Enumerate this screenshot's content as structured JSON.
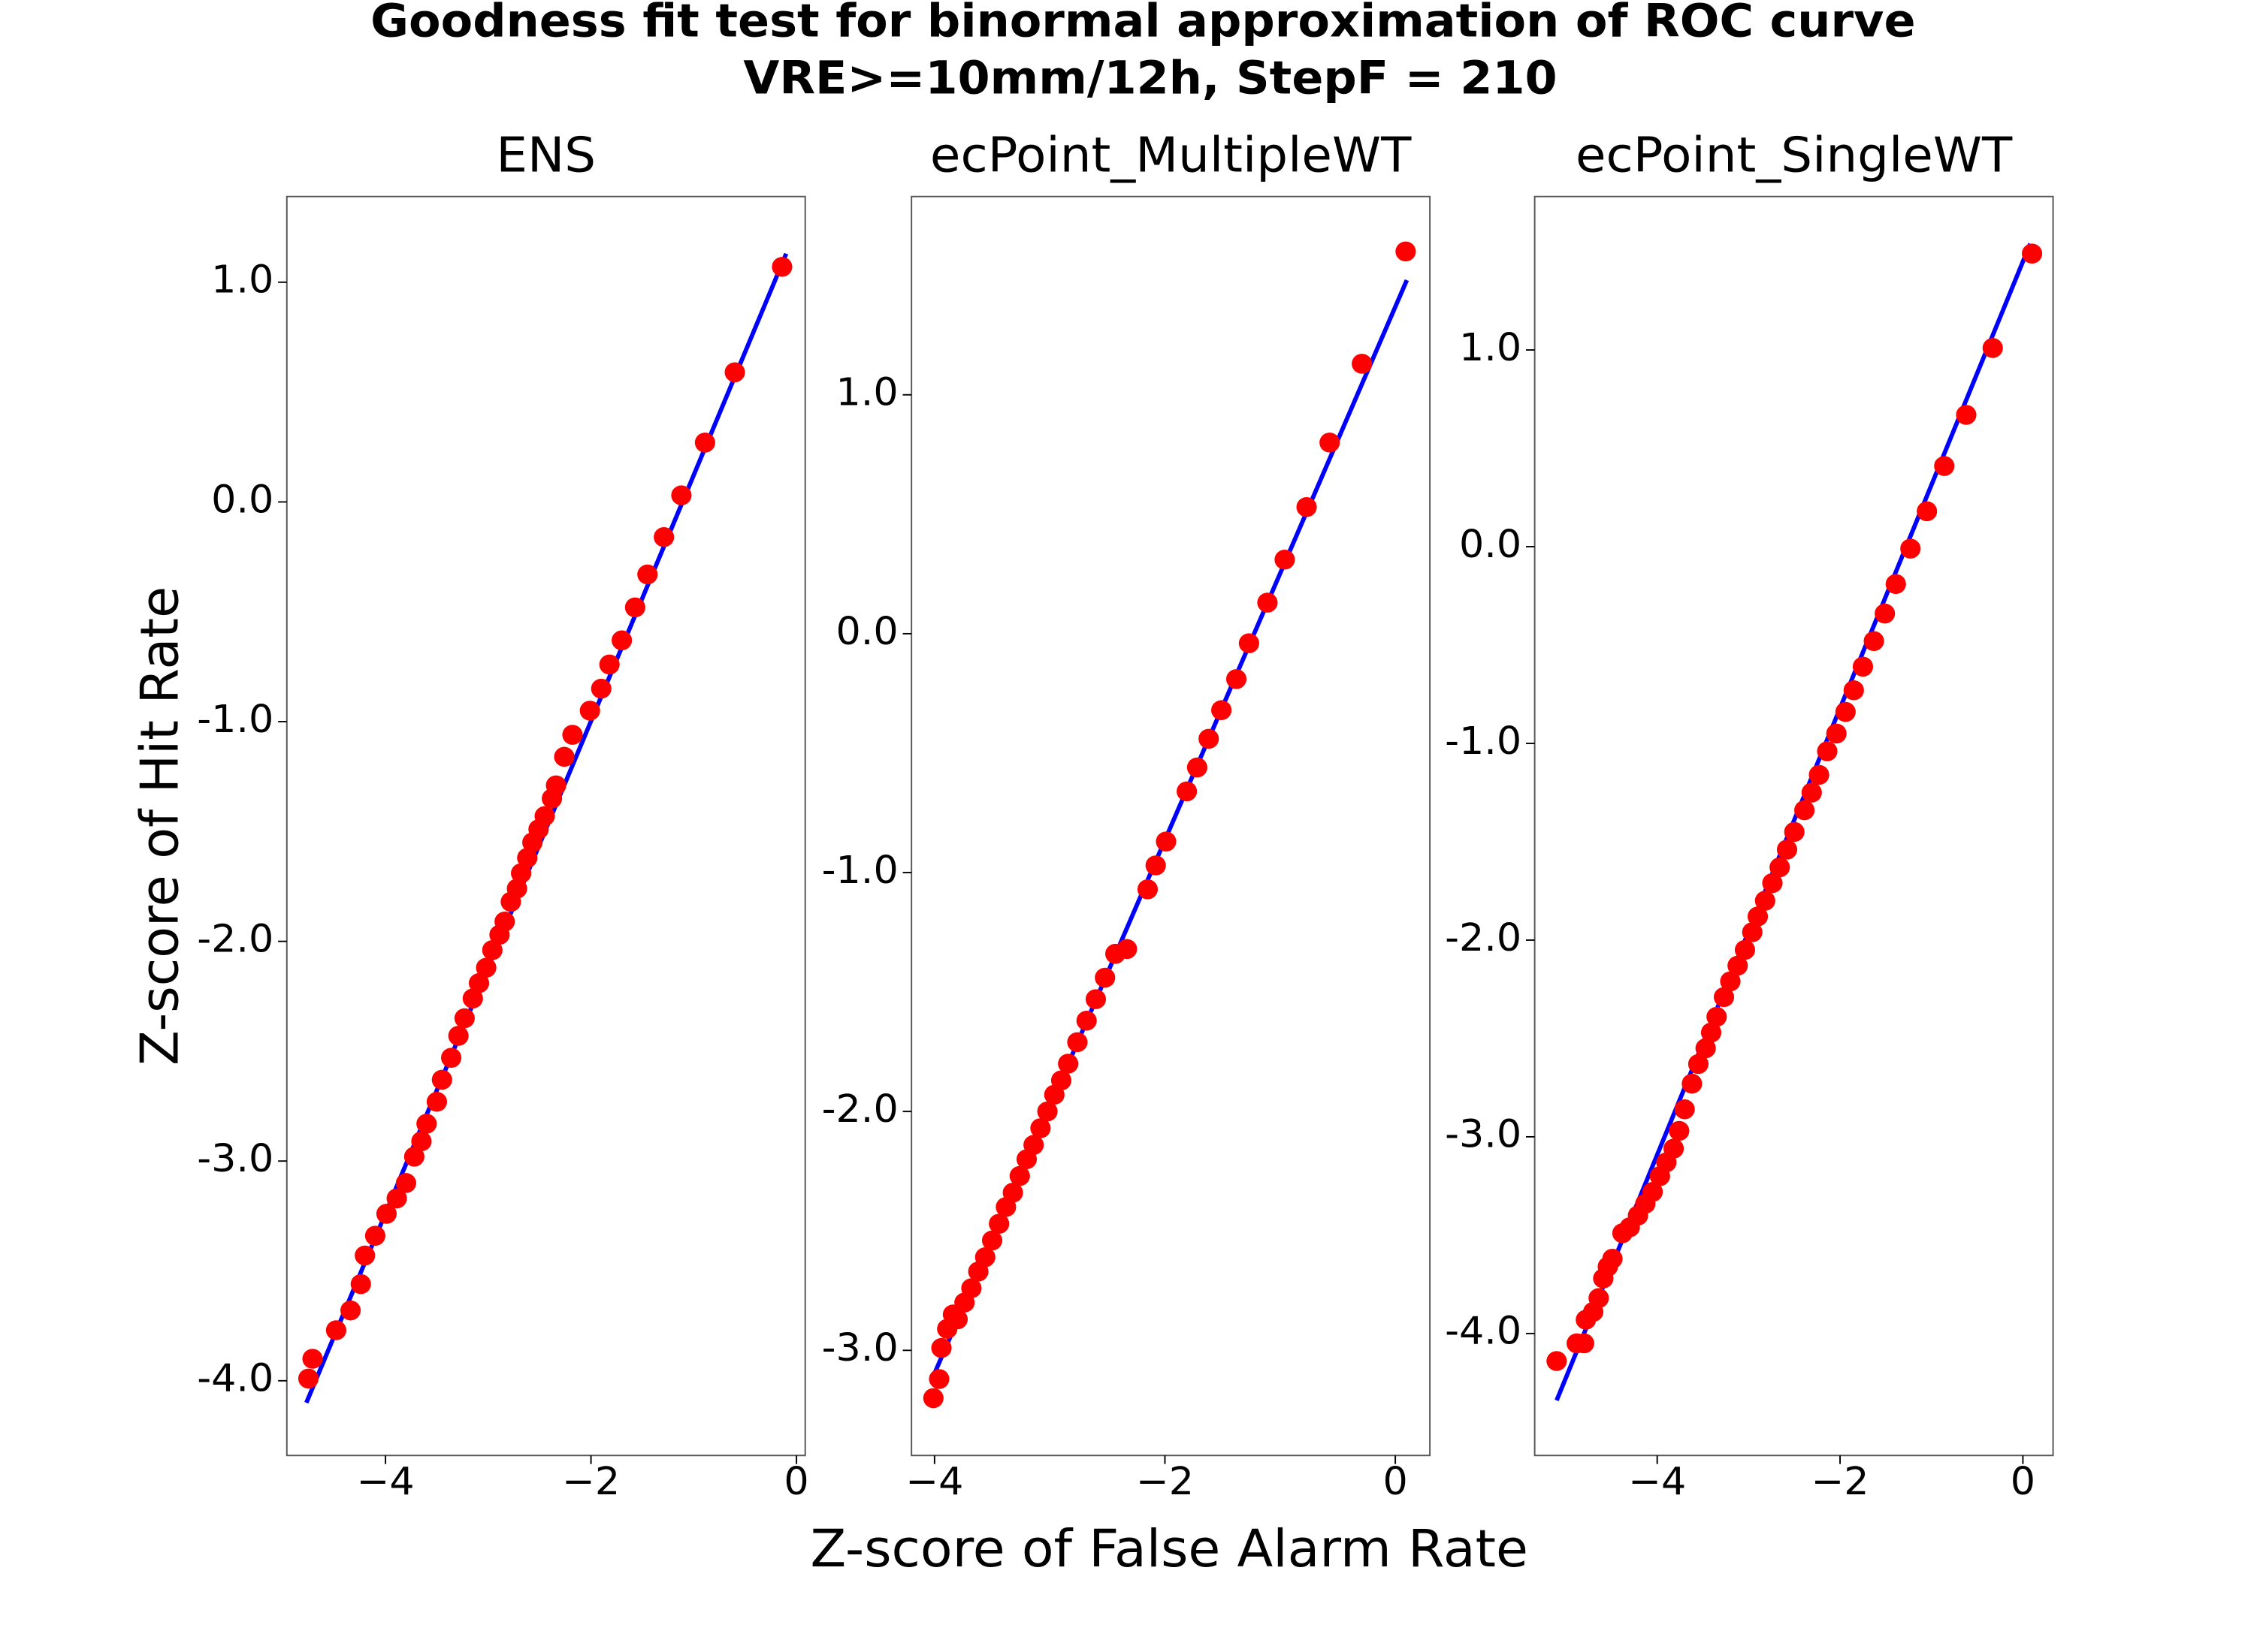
{
  "figure": {
    "title": [
      "Goodness fit test for binormal approximation of ROC curve",
      "VRE>=10mm/12h, StepF = 210"
    ],
    "xlabel": "Z-score of False Alarm Rate",
    "ylabel": "Z-score of Hit Rate"
  },
  "chart_data": [
    {
      "type": "scatter",
      "title": "ENS",
      "color": "#ff0000",
      "x": [
        -4.75,
        -4.71,
        -4.48,
        -4.34,
        -4.24,
        -4.2,
        -4.1,
        -3.99,
        -3.89,
        -3.8,
        -3.72,
        -3.65,
        -3.6,
        -3.5,
        -3.45,
        -3.36,
        -3.29,
        -3.23,
        -3.15,
        -3.09,
        -3.02,
        -2.96,
        -2.89,
        -2.84,
        -2.78,
        -2.72,
        -2.68,
        -2.62,
        -2.57,
        -2.51,
        -2.45,
        -2.38,
        -2.34,
        -2.26,
        -2.18,
        -2.01,
        -1.9,
        -1.82,
        -1.7,
        -1.57,
        -1.45,
        -1.29,
        -1.12,
        -0.89,
        -0.6,
        -0.14
      ],
      "y": [
        -3.99,
        -3.9,
        -3.77,
        -3.68,
        -3.56,
        -3.43,
        -3.34,
        -3.24,
        -3.17,
        -3.1,
        -2.98,
        -2.91,
        -2.83,
        -2.73,
        -2.63,
        -2.53,
        -2.43,
        -2.35,
        -2.26,
        -2.19,
        -2.12,
        -2.04,
        -1.97,
        -1.91,
        -1.82,
        -1.76,
        -1.69,
        -1.62,
        -1.55,
        -1.49,
        -1.43,
        -1.35,
        -1.29,
        -1.16,
        -1.06,
        -0.95,
        -0.85,
        -0.74,
        -0.63,
        -0.48,
        -0.33,
        -0.16,
        0.03,
        0.27,
        0.59,
        1.07
      ],
      "fit": {
        "x": [
          -4.77,
          -0.1
        ],
        "y": [
          -4.1,
          1.13
        ],
        "color": "#0000ff"
      },
      "xlim": [
        -4.96,
        0.085
      ],
      "ylim": [
        -4.34,
        1.39
      ],
      "xticks": [
        {
          "value": -4,
          "label": "−4"
        },
        {
          "value": -2,
          "label": "−2"
        },
        0
      ],
      "yticks": [
        {
          "value": 1,
          "label": "1.0"
        },
        {
          "value": 0,
          "label": "0.0"
        },
        {
          "value": -1,
          "label": "-1.0"
        },
        {
          "value": -2,
          "label": "-2.0"
        },
        {
          "value": -3,
          "label": "-3.0"
        },
        {
          "value": -4,
          "label": "-4.0"
        }
      ]
    },
    {
      "type": "scatter",
      "title": "ecPoint_MultipleWT",
      "color": "#ff0000",
      "x": [
        -4.01,
        -3.96,
        -3.94,
        -3.89,
        -3.84,
        -3.8,
        -3.74,
        -3.68,
        -3.62,
        -3.56,
        -3.5,
        -3.44,
        -3.38,
        -3.32,
        -3.26,
        -3.2,
        -3.14,
        -3.08,
        -3.02,
        -2.96,
        -2.9,
        -2.84,
        -2.76,
        -2.68,
        -2.6,
        -2.52,
        -2.43,
        -2.33,
        -2.15,
        -2.08,
        -1.99,
        -1.81,
        -1.72,
        -1.62,
        -1.51,
        -1.38,
        -1.27,
        -1.11,
        -0.96,
        -0.77,
        -0.57,
        -0.29,
        0.09
      ],
      "y": [
        -3.2,
        -3.12,
        -2.99,
        -2.91,
        -2.85,
        -2.87,
        -2.8,
        -2.74,
        -2.67,
        -2.61,
        -2.54,
        -2.47,
        -2.4,
        -2.34,
        -2.27,
        -2.2,
        -2.14,
        -2.07,
        -2.0,
        -1.93,
        -1.87,
        -1.8,
        -1.71,
        -1.62,
        -1.53,
        -1.44,
        -1.34,
        -1.32,
        -1.07,
        -0.97,
        -0.87,
        -0.66,
        -0.56,
        -0.44,
        -0.32,
        -0.19,
        -0.04,
        0.13,
        0.31,
        0.53,
        0.8,
        1.13,
        1.6
      ],
      "fit": {
        "x": [
          -4.03,
          0.1
        ],
        "y": [
          -3.13,
          1.48
        ],
        "color": "#0000ff"
      },
      "xlim": [
        -4.2,
        0.3
      ],
      "ylim": [
        -3.44,
        1.83
      ],
      "xticks": [
        {
          "value": -4,
          "label": "−4"
        },
        {
          "value": -2,
          "label": "−2"
        },
        0
      ],
      "yticks": [
        {
          "value": 1,
          "label": "1.0"
        },
        {
          "value": 0,
          "label": "0.0"
        },
        {
          "value": -1,
          "label": "-1.0"
        },
        {
          "value": -2,
          "label": "-2.0"
        },
        {
          "value": -3,
          "label": "-3.0"
        }
      ]
    },
    {
      "type": "scatter",
      "title": "ecPoint_SingleWT",
      "color": "#ff0000",
      "x": [
        -5.1,
        -4.88,
        -4.8,
        -4.78,
        -4.7,
        -4.64,
        -4.59,
        -4.54,
        -4.49,
        -4.38,
        -4.3,
        -4.21,
        -4.13,
        -4.05,
        -3.97,
        -3.9,
        -3.82,
        -3.76,
        -3.7,
        -3.62,
        -3.55,
        -3.47,
        -3.41,
        -3.35,
        -3.27,
        -3.2,
        -3.12,
        -3.04,
        -2.96,
        -2.9,
        -2.82,
        -2.74,
        -2.66,
        -2.58,
        -2.5,
        -2.39,
        -2.31,
        -2.23,
        -2.14,
        -2.04,
        -1.94,
        -1.85,
        -1.75,
        -1.63,
        -1.51,
        -1.39,
        -1.23,
        -1.05,
        -0.86,
        -0.62,
        -0.33,
        0.1
      ],
      "y": [
        -4.14,
        -4.05,
        -4.05,
        -3.93,
        -3.89,
        -3.82,
        -3.72,
        -3.66,
        -3.62,
        -3.49,
        -3.46,
        -3.4,
        -3.34,
        -3.28,
        -3.2,
        -3.13,
        -3.06,
        -2.97,
        -2.86,
        -2.73,
        -2.63,
        -2.55,
        -2.47,
        -2.39,
        -2.29,
        -2.21,
        -2.13,
        -2.05,
        -1.96,
        -1.88,
        -1.8,
        -1.71,
        -1.63,
        -1.54,
        -1.45,
        -1.34,
        -1.25,
        -1.16,
        -1.04,
        -0.95,
        -0.84,
        -0.73,
        -0.61,
        -0.48,
        -0.34,
        -0.19,
        -0.01,
        0.18,
        0.41,
        0.67,
        1.01,
        1.49
      ],
      "fit": {
        "x": [
          -5.1,
          0.08
        ],
        "y": [
          -4.34,
          1.54
        ],
        "color": "#0000ff"
      },
      "xlim": [
        -5.34,
        0.33
      ],
      "ylim": [
        -4.62,
        1.78
      ],
      "xticks": [
        {
          "value": -4,
          "label": "−4"
        },
        {
          "value": -2,
          "label": "−2"
        },
        0
      ],
      "yticks": [
        {
          "value": 1,
          "label": "1.0"
        },
        {
          "value": 0,
          "label": "0.0"
        },
        {
          "value": -1,
          "label": "-1.0"
        },
        {
          "value": -2,
          "label": "-2.0"
        },
        {
          "value": -3,
          "label": "-3.0"
        },
        {
          "value": -4,
          "label": "-4.0"
        }
      ]
    }
  ]
}
